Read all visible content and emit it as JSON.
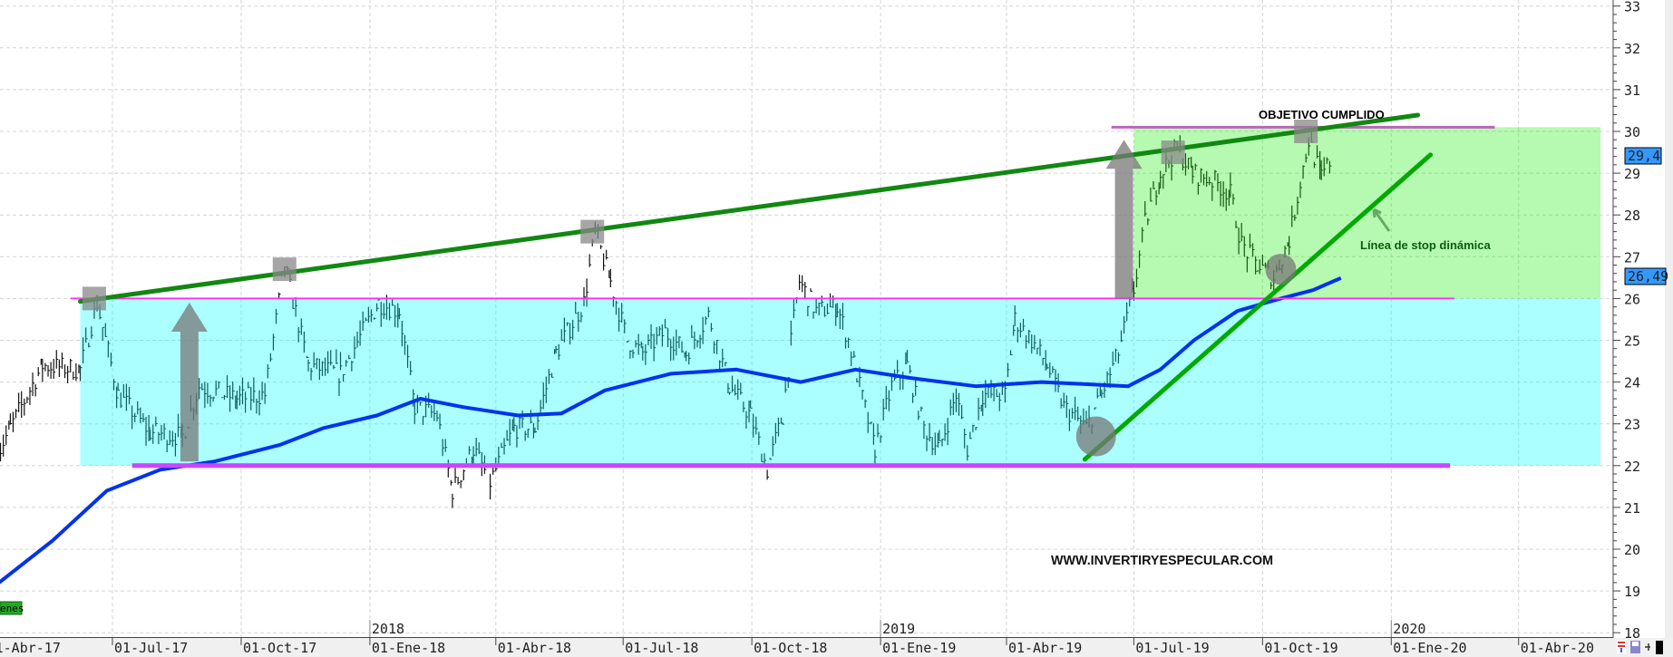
{
  "chart_data": {
    "type": "ohlc",
    "title": "",
    "xlabel": "",
    "ylabel": "",
    "ylim": [
      18,
      33
    ],
    "y_ticks": [
      "18",
      "19",
      "20",
      "21",
      "22",
      "23",
      "24",
      "25",
      "26",
      "27",
      "28",
      "29",
      "30",
      "31",
      "32",
      "33"
    ],
    "x_ticks": [
      {
        "date": "2017-04-01",
        "label": "01-Abr-17"
      },
      {
        "date": "2017-07-01",
        "label": "01-Jul-17"
      },
      {
        "date": "2017-10-01",
        "label": "01-Oct-17"
      },
      {
        "date": "2018-01-01",
        "label": "01-Ene-18"
      },
      {
        "date": "2018-04-01",
        "label": "01-Abr-18"
      },
      {
        "date": "2018-07-01",
        "label": "01-Jul-18"
      },
      {
        "date": "2018-10-01",
        "label": "01-Oct-18"
      },
      {
        "date": "2019-01-01",
        "label": "01-Ene-19"
      },
      {
        "date": "2019-04-01",
        "label": "01-Abr-19"
      },
      {
        "date": "2019-07-01",
        "label": "01-Jul-19"
      },
      {
        "date": "2019-10-01",
        "label": "01-Oct-19"
      },
      {
        "date": "2020-01-01",
        "label": "01-Ene-20"
      },
      {
        "date": "2020-04-01",
        "label": "01-Abr-20"
      }
    ],
    "year_labels": [
      {
        "date": "2018-01-01",
        "label": "2018"
      },
      {
        "date": "2019-01-01",
        "label": "2019"
      },
      {
        "date": "2020-01-01",
        "label": "2020"
      }
    ],
    "grid": true,
    "series": [
      {
        "kind": "price",
        "color": "#000000",
        "points": [
          [
            "2017-04-10",
            22.3
          ],
          [
            "2017-04-19",
            22.9
          ],
          [
            "2017-05-12",
            24.4
          ],
          [
            "2017-06-08",
            24.3
          ],
          [
            "2017-06-20",
            25.9
          ],
          [
            "2017-07-05",
            23.7
          ],
          [
            "2017-07-28",
            22.8
          ],
          [
            "2017-08-20",
            22.7
          ],
          [
            "2017-09-01",
            23.9
          ],
          [
            "2017-09-28",
            23.6
          ],
          [
            "2017-10-18",
            23.7
          ],
          [
            "2017-11-01",
            26.8
          ],
          [
            "2017-11-18",
            24.4
          ],
          [
            "2017-12-11",
            24.2
          ],
          [
            "2018-01-07",
            25.9
          ],
          [
            "2018-01-22",
            25.7
          ],
          [
            "2018-02-02",
            23.4
          ],
          [
            "2018-02-18",
            23.2
          ],
          [
            "2018-03-01",
            21.4
          ],
          [
            "2018-03-16",
            22.4
          ],
          [
            "2018-03-28",
            21.6
          ],
          [
            "2018-04-14",
            22.9
          ],
          [
            "2018-04-29",
            22.9
          ],
          [
            "2018-05-14",
            24.7
          ],
          [
            "2018-06-03",
            25.9
          ],
          [
            "2018-06-11",
            27.6
          ],
          [
            "2018-06-22",
            26.4
          ],
          [
            "2018-07-04",
            25.0
          ],
          [
            "2018-07-15",
            24.7
          ],
          [
            "2018-07-31",
            25.2
          ],
          [
            "2018-08-15",
            24.7
          ],
          [
            "2018-08-31",
            25.6
          ],
          [
            "2018-09-15",
            23.9
          ],
          [
            "2018-09-30",
            23.2
          ],
          [
            "2018-10-12",
            21.9
          ],
          [
            "2018-10-23",
            23.2
          ],
          [
            "2018-10-31",
            25.5
          ],
          [
            "2018-11-04",
            26.4
          ],
          [
            "2018-11-16",
            25.7
          ],
          [
            "2018-12-01",
            25.8
          ],
          [
            "2018-12-09",
            25.0
          ],
          [
            "2018-12-17",
            23.9
          ],
          [
            "2018-12-28",
            22.4
          ],
          [
            "2019-01-09",
            23.9
          ],
          [
            "2019-01-20",
            24.4
          ],
          [
            "2019-02-01",
            22.9
          ],
          [
            "2019-02-12",
            22.4
          ],
          [
            "2019-02-24",
            23.7
          ],
          [
            "2019-03-04",
            22.4
          ],
          [
            "2019-03-15",
            23.7
          ],
          [
            "2019-03-31",
            23.7
          ],
          [
            "2019-04-07",
            25.5
          ],
          [
            "2019-04-19",
            25.0
          ],
          [
            "2019-04-30",
            24.4
          ],
          [
            "2019-05-12",
            23.4
          ],
          [
            "2019-05-28",
            22.9
          ],
          [
            "2019-06-08",
            23.7
          ],
          [
            "2019-06-20",
            24.7
          ],
          [
            "2019-07-01",
            26.2
          ],
          [
            "2019-07-09",
            27.8
          ],
          [
            "2019-07-20",
            29.0
          ],
          [
            "2019-08-01",
            29.6
          ],
          [
            "2019-08-12",
            29.0
          ],
          [
            "2019-08-28",
            28.8
          ],
          [
            "2019-09-08",
            28.5
          ],
          [
            "2019-09-16",
            27.3
          ],
          [
            "2019-09-27",
            26.8
          ],
          [
            "2019-10-09",
            26.5
          ],
          [
            "2019-10-20",
            27.4
          ],
          [
            "2019-10-28",
            28.8
          ],
          [
            "2019-11-03",
            29.8
          ],
          [
            "2019-11-12",
            28.9
          ],
          [
            "2019-11-20",
            29.4
          ]
        ]
      },
      {
        "kind": "moving-average",
        "color": "#0033ee",
        "points": [
          [
            "2017-04-11",
            19.2
          ],
          [
            "2017-05-19",
            20.2
          ],
          [
            "2017-06-27",
            21.4
          ],
          [
            "2017-08-04",
            21.9
          ],
          [
            "2017-09-12",
            22.1
          ],
          [
            "2017-10-29",
            22.5
          ],
          [
            "2017-11-29",
            22.9
          ],
          [
            "2018-01-06",
            23.2
          ],
          [
            "2018-02-06",
            23.6
          ],
          [
            "2018-03-09",
            23.4
          ],
          [
            "2018-04-17",
            23.2
          ],
          [
            "2018-05-18",
            23.25
          ],
          [
            "2018-06-18",
            23.8
          ],
          [
            "2018-08-04",
            24.2
          ],
          [
            "2018-09-20",
            24.3
          ],
          [
            "2018-11-05",
            24.0
          ],
          [
            "2018-12-14",
            24.3
          ],
          [
            "2019-01-22",
            24.1
          ],
          [
            "2019-03-10",
            23.9
          ],
          [
            "2019-04-26",
            24.0
          ],
          [
            "2019-05-27",
            23.95
          ],
          [
            "2019-06-27",
            23.9
          ],
          [
            "2019-07-20",
            24.3
          ],
          [
            "2019-08-13",
            25.0
          ],
          [
            "2019-09-13",
            25.7
          ],
          [
            "2019-10-14",
            26.0
          ],
          [
            "2019-11-06",
            26.2
          ],
          [
            "2019-11-26",
            26.49
          ]
        ]
      }
    ],
    "last_values": {
      "price": "29,4",
      "moving_average": "26,49"
    },
    "annotations": {
      "zones": [
        {
          "from": "2017-06-08",
          "to": "2020-06-15",
          "low": 22,
          "high": 26,
          "color": "#00ffff"
        },
        {
          "from": "2019-07-01",
          "to": "2020-06-15",
          "low": 26,
          "high": 30.1,
          "color": "#22ee11"
        }
      ],
      "hlines": [
        {
          "from": "2017-06-01",
          "to": "2020-02-15",
          "value": 26,
          "color": "#ff33ff"
        },
        {
          "from": "2017-07-15",
          "to": "2020-02-12",
          "value": 22,
          "color": "#cc44ff"
        },
        {
          "from": "2019-06-15",
          "to": "2020-03-15",
          "value": 30.1,
          "color": "#bb66bb"
        }
      ],
      "trendlines": [
        {
          "from": [
            "2017-06-08",
            25.93
          ],
          "to": [
            "2020-01-20",
            30.39
          ],
          "color": "#118811"
        },
        {
          "from": [
            "2019-05-27",
            22.15
          ],
          "to": [
            "2020-01-29",
            29.44
          ],
          "color": "#00aa00"
        }
      ],
      "arrows": [
        {
          "date": "2017-08-25",
          "from": 22.1,
          "to": 25.9
        },
        {
          "date": "2019-06-24",
          "from": 26.0,
          "to": 29.8
        }
      ],
      "squares": [
        [
          "2017-06-18",
          26.0
        ],
        [
          "2017-11-01",
          26.7
        ],
        [
          "2018-06-09",
          27.6
        ],
        [
          "2019-07-29",
          29.5
        ],
        [
          "2019-11-01",
          30.0
        ]
      ],
      "circles": [
        {
          "center": [
            "2019-06-04",
            22.7
          ],
          "size": "large"
        },
        {
          "center": [
            "2019-10-14",
            26.7
          ],
          "size": "small"
        }
      ]
    },
    "labels": {
      "target": "OBJETIVO CUMPLIDO",
      "stop_line": "Línea de stop dinámica",
      "watermark": "WWW.INVERTIRYESPECULAR.COM",
      "legend_stub": "enes"
    }
  },
  "colors": {
    "legend_stub": "#22aa22",
    "price_tag": "#3399ff"
  }
}
